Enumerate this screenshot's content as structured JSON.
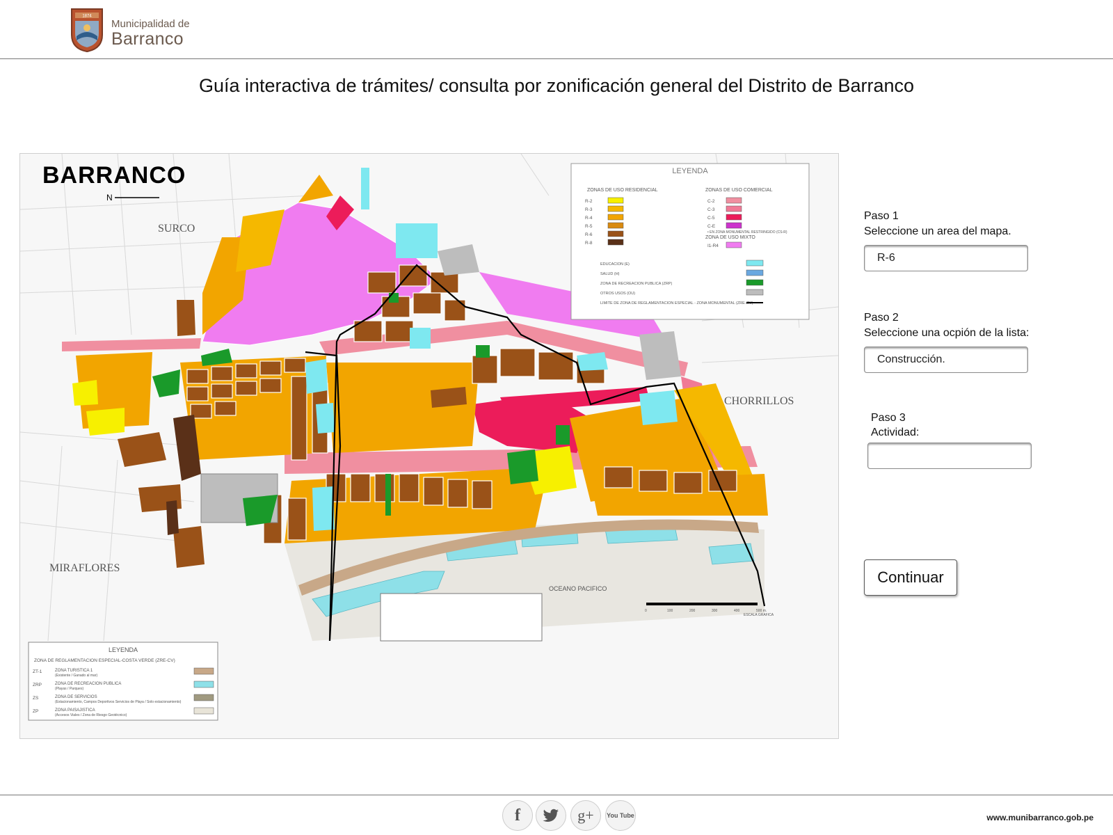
{
  "header": {
    "brand_line1": "Municipalidad de",
    "brand_line2": "Barranco",
    "founded": "1874"
  },
  "title": "Guía interactiva de trámites/ consulta por zonificación general del Distrito de Barranco",
  "map": {
    "heading": "BARRANCO",
    "north": "N",
    "district_labels": {
      "surco": "SURCO",
      "chorrillos": "CHORRILLOS",
      "miraflores": "MIRAFLORES",
      "ocean": "OCEANO PACIFICO"
    },
    "legend": {
      "title": "LEYENDA",
      "residential_title": "ZONAS DE USO RESIDENCIAL",
      "commercial_title": "ZONAS DE USO COMERCIAL",
      "mixed_title": "ZONA DE USO MIXTO",
      "note": "• EN ZONA MONUMENTAL RESTRINGIDO (CS-R)",
      "residential": [
        {
          "code": "R-2",
          "color": "#f7f000"
        },
        {
          "code": "R-3",
          "color": "#f5b800"
        },
        {
          "code": "R-4",
          "color": "#f2a500"
        },
        {
          "code": "R-5",
          "color": "#d98a10"
        },
        {
          "code": "R-6",
          "color": "#9a5218"
        },
        {
          "code": "R-8",
          "color": "#5a3018"
        }
      ],
      "commercial": [
        {
          "code": "C-2",
          "color": "#f08fa0"
        },
        {
          "code": "C-3",
          "color": "#f07a96"
        },
        {
          "code": "C-5",
          "color": "#ec1c5a"
        },
        {
          "code": "C-E",
          "color": "#cc33cc"
        }
      ],
      "mixed": [
        {
          "code": "I1-R4",
          "color": "#f07cf0"
        }
      ],
      "other": [
        {
          "label": "EDUCACION (E)",
          "color": "#7ee8f0"
        },
        {
          "label": "SALUD (H)",
          "color": "#6aa8e0"
        },
        {
          "label": "ZONA DE RECREACION PUBLICA (ZRP)",
          "color": "#1a9a2a"
        },
        {
          "label": "OTROS USOS (OU)",
          "color": "#bdbdbd"
        },
        {
          "label": "LIMITE DE ZONA DE REGLAMENTACION ESPECIAL - ZONA MONUMENTAL (ZRE-ZM)",
          "color": "#000000"
        }
      ]
    },
    "legend2": {
      "title": "LEYENDA",
      "subtitle": "ZONA DE REGLAMENTACION ESPECIAL-COSTA VERDE (ZRE-CV)",
      "rows": [
        {
          "code": "ZT-1",
          "text": "ZONA TURISTICA 1",
          "sub": "(Existente / Ganado al mar)",
          "color": "#c8a888"
        },
        {
          "code": "ZRP",
          "text": "ZONA DE RECREACION PUBLICA",
          "sub": "(Playas / Parques)",
          "color": "#8ee0e8"
        },
        {
          "code": "ZS",
          "text": "ZONA DE SERVICIOS",
          "sub": "(Estacionamiento, Campos Deportivos Servicios de Playa / Solo estacionamiento)",
          "color": "#a09a80"
        },
        {
          "code": "ZP",
          "text": "ZONA PAISAJISTICA",
          "sub": "(Accesos Viales / Zona de Riesgo Geotécnico)",
          "color": "#e8e4d8"
        }
      ]
    },
    "scale": {
      "ticks": [
        "0",
        "100",
        "200",
        "300",
        "400",
        "500 m."
      ],
      "label": "ESCALA GRAFICA"
    }
  },
  "steps": {
    "step1": {
      "heading": "Paso 1",
      "desc": "Seleccione un area del mapa.",
      "value": "R-6"
    },
    "step2": {
      "heading": "Paso 2",
      "desc": "Seleccione una ocpión de la lista:",
      "value": "Construcción."
    },
    "step3": {
      "heading": "Paso 3",
      "desc": "Actividad:",
      "value": ""
    }
  },
  "continue_label": "Continuar",
  "footer": {
    "url": "www.munibarranco.gob.pe",
    "social": [
      {
        "icon": "facebook-icon",
        "glyph": "f"
      },
      {
        "icon": "twitter-icon",
        "glyph": "t"
      },
      {
        "icon": "google-plus-icon",
        "glyph": "g+"
      },
      {
        "icon": "youtube-icon",
        "glyph": "You Tube"
      }
    ]
  }
}
